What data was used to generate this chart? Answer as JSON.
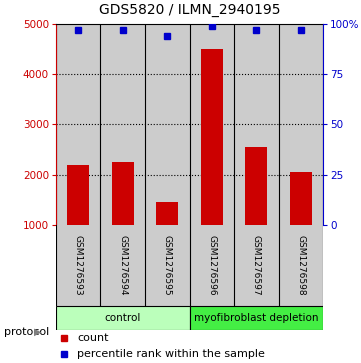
{
  "title": "GDS5820 / ILMN_2940195",
  "samples": [
    "GSM1276593",
    "GSM1276594",
    "GSM1276595",
    "GSM1276596",
    "GSM1276597",
    "GSM1276598"
  ],
  "bar_values": [
    2200,
    2250,
    1450,
    4500,
    2550,
    2050
  ],
  "percentile_values": [
    97,
    97,
    94,
    99,
    97,
    97
  ],
  "ylim_left": [
    1000,
    5000
  ],
  "ylim_right": [
    0,
    100
  ],
  "yticks_left": [
    1000,
    2000,
    3000,
    4000,
    5000
  ],
  "yticks_right": [
    0,
    25,
    50,
    75,
    100
  ],
  "yticklabels_right": [
    "0",
    "25",
    "50",
    "75",
    "100%"
  ],
  "bar_color": "#cc0000",
  "dot_color": "#0000cc",
  "left_axis_color": "#cc0000",
  "right_axis_color": "#0000cc",
  "protocol_groups": [
    {
      "label": "control",
      "indices": [
        0,
        1,
        2
      ],
      "color": "#bbffbb"
    },
    {
      "label": "myofibroblast depletion",
      "indices": [
        3,
        4,
        5
      ],
      "color": "#44ee44"
    }
  ],
  "protocol_label": "protocol",
  "legend_count_label": "count",
  "legend_percentile_label": "percentile rank within the sample",
  "sample_bg_color": "#cccccc",
  "grid_color": "#000000"
}
